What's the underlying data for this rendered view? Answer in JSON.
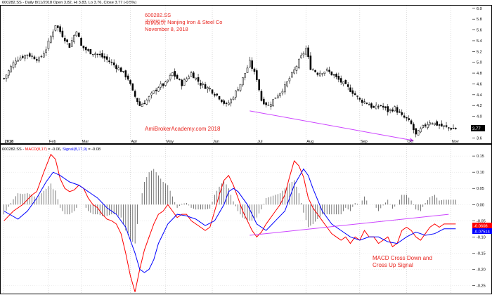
{
  "colors": {
    "up": "#ffffff",
    "down": "#000000",
    "macd": "#ff0000",
    "signal": "#0000ff",
    "histogram": "#404040",
    "trendline": "#cc44ff",
    "annotation": "#e8241e"
  },
  "header": {
    "price_info": "600282.SS - Daily 8/11/2018 Open 3.82, Hi 3.83, Lo 3.76, Close 3.77 (-0.5%)",
    "macd_info_prefix": "600282.SS - ",
    "macd_label": "MACD(8,17)",
    "macd_value": " = -0.06, ",
    "signal_label": "Signal(8,17,9)",
    "signal_value": " = -0.08"
  },
  "annotations": {
    "ticker": "600282.SS",
    "company": "南钢股份 Nanjing Iron & Steel Co",
    "date": "November 8, 2018",
    "watermark": "AmiBrokerAcademy.com 2018",
    "signal_note_line1": "MACD Cross Down and",
    "signal_note_line2": "Cross Up Signal"
  },
  "price_tag": "3.77",
  "macd_tag": "-0.0608",
  "signal_tag": "-0.07514",
  "chart_data": [
    {
      "type": "candlestick",
      "title": "600282.SS",
      "x_months": [
        "2018",
        "Feb",
        "Mar",
        "Apr",
        "May",
        "Jun",
        "Jul",
        "Aug",
        "Sep",
        "Oct",
        "Nov"
      ],
      "month_start_bar": [
        0,
        19,
        33,
        54,
        69,
        89,
        108,
        129,
        152,
        172,
        191
      ],
      "y_ticks": [
        3.6,
        3.8,
        4.0,
        4.2,
        4.4,
        4.6,
        4.8,
        5.0,
        5.2,
        5.4,
        5.6,
        5.8,
        6.0
      ],
      "ylim": [
        3.5,
        6.05
      ],
      "close_points": [
        [
          0,
          4.7
        ],
        [
          5,
          5.05
        ],
        [
          10,
          5.15
        ],
        [
          15,
          5.05
        ],
        [
          18,
          5.25
        ],
        [
          22,
          5.7
        ],
        [
          25,
          5.5
        ],
        [
          28,
          5.3
        ],
        [
          31,
          5.6
        ],
        [
          33,
          5.3
        ],
        [
          36,
          5.2
        ],
        [
          40,
          5.15
        ],
        [
          44,
          5.05
        ],
        [
          47,
          4.95
        ],
        [
          50,
          4.85
        ],
        [
          53,
          4.7
        ],
        [
          55,
          4.45
        ],
        [
          58,
          4.2
        ],
        [
          61,
          4.3
        ],
        [
          64,
          4.45
        ],
        [
          66,
          4.55
        ],
        [
          69,
          4.6
        ],
        [
          72,
          4.8
        ],
        [
          76,
          4.6
        ],
        [
          80,
          4.8
        ],
        [
          84,
          4.6
        ],
        [
          88,
          4.5
        ],
        [
          92,
          4.35
        ],
        [
          95,
          4.2
        ],
        [
          97,
          4.3
        ],
        [
          101,
          4.6
        ],
        [
          105,
          5.0
        ],
        [
          108,
          4.7
        ],
        [
          110,
          4.3
        ],
        [
          113,
          4.2
        ],
        [
          117,
          4.4
        ],
        [
          120,
          4.55
        ],
        [
          124,
          4.85
        ],
        [
          127,
          5.1
        ],
        [
          129,
          5.25
        ],
        [
          131,
          4.9
        ],
        [
          134,
          4.8
        ],
        [
          138,
          4.85
        ],
        [
          141,
          4.75
        ],
        [
          145,
          4.6
        ],
        [
          149,
          4.45
        ],
        [
          152,
          4.3
        ],
        [
          155,
          4.25
        ],
        [
          158,
          4.15
        ],
        [
          161,
          4.2
        ],
        [
          164,
          4.1
        ],
        [
          167,
          4.15
        ],
        [
          170,
          4.0
        ],
        [
          172,
          3.95
        ],
        [
          174,
          3.85
        ],
        [
          176,
          3.65
        ],
        [
          179,
          3.8
        ],
        [
          182,
          3.9
        ],
        [
          185,
          3.85
        ],
        [
          188,
          3.8
        ],
        [
          191,
          3.78
        ],
        [
          193,
          3.77
        ]
      ],
      "trendline": [
        [
          105,
          4.1
        ],
        [
          175,
          3.55
        ]
      ]
    },
    {
      "type": "line",
      "series_names": [
        "MACD(8,17)",
        "Signal(8,17,9)"
      ],
      "y_ticks": [
        -0.25,
        -0.2,
        -0.15,
        -0.1,
        -0.05,
        0.0,
        0.05,
        0.1,
        0.15
      ],
      "ylim": [
        -0.275,
        0.185
      ],
      "macd_points": [
        [
          0,
          -0.05
        ],
        [
          4,
          -0.02
        ],
        [
          8,
          0.0
        ],
        [
          12,
          0.03
        ],
        [
          14,
          0.04
        ],
        [
          17,
          0.1
        ],
        [
          20,
          0.155
        ],
        [
          22,
          0.14
        ],
        [
          24,
          0.08
        ],
        [
          26,
          0.05
        ],
        [
          28,
          0.04
        ],
        [
          30,
          0.045
        ],
        [
          32,
          0.06
        ],
        [
          34,
          0.05
        ],
        [
          36,
          0.02
        ],
        [
          38,
          0.0
        ],
        [
          40,
          -0.01
        ],
        [
          42,
          -0.03
        ],
        [
          44,
          -0.045
        ],
        [
          46,
          -0.05
        ],
        [
          48,
          -0.06
        ],
        [
          50,
          -0.09
        ],
        [
          52,
          -0.15
        ],
        [
          54,
          -0.22
        ],
        [
          56,
          -0.27
        ],
        [
          58,
          -0.2
        ],
        [
          60,
          -0.14
        ],
        [
          62,
          -0.1
        ],
        [
          64,
          -0.06
        ],
        [
          66,
          -0.03
        ],
        [
          68,
          -0.02
        ],
        [
          70,
          0.0
        ],
        [
          72,
          -0.02
        ],
        [
          74,
          -0.04
        ],
        [
          76,
          -0.03
        ],
        [
          78,
          -0.03
        ],
        [
          80,
          -0.05
        ],
        [
          82,
          -0.06
        ],
        [
          84,
          -0.07
        ],
        [
          86,
          -0.08
        ],
        [
          88,
          -0.07
        ],
        [
          90,
          -0.02
        ],
        [
          92,
          0.03
        ],
        [
          94,
          0.075
        ],
        [
          96,
          0.09
        ],
        [
          98,
          0.06
        ],
        [
          100,
          0.02
        ],
        [
          102,
          -0.02
        ],
        [
          104,
          -0.05
        ],
        [
          106,
          -0.08
        ],
        [
          108,
          -0.1
        ],
        [
          110,
          -0.085
        ],
        [
          112,
          -0.06
        ],
        [
          114,
          -0.04
        ],
        [
          116,
          -0.02
        ],
        [
          118,
          0.0
        ],
        [
          120,
          0.03
        ],
        [
          122,
          0.085
        ],
        [
          124,
          0.135
        ],
        [
          126,
          0.12
        ],
        [
          128,
          0.085
        ],
        [
          130,
          0.02
        ],
        [
          132,
          -0.01
        ],
        [
          134,
          -0.03
        ],
        [
          136,
          -0.05
        ],
        [
          138,
          -0.07
        ],
        [
          140,
          -0.09
        ],
        [
          142,
          -0.1
        ],
        [
          144,
          -0.11
        ],
        [
          146,
          -0.1
        ],
        [
          148,
          -0.12
        ],
        [
          150,
          -0.1
        ],
        [
          152,
          -0.11
        ],
        [
          154,
          -0.08
        ],
        [
          156,
          -0.1
        ],
        [
          158,
          -0.1
        ],
        [
          160,
          -0.12
        ],
        [
          162,
          -0.11
        ],
        [
          164,
          -0.1
        ],
        [
          166,
          -0.13
        ],
        [
          168,
          -0.12
        ],
        [
          170,
          -0.08
        ],
        [
          172,
          -0.07
        ],
        [
          174,
          -0.08
        ],
        [
          176,
          -0.1
        ],
        [
          178,
          -0.11
        ],
        [
          180,
          -0.09
        ],
        [
          182,
          -0.07
        ],
        [
          184,
          -0.06
        ],
        [
          186,
          -0.07
        ],
        [
          188,
          -0.06
        ],
        [
          190,
          -0.06
        ],
        [
          193,
          -0.06
        ]
      ],
      "signal_points": [
        [
          0,
          -0.02
        ],
        [
          6,
          -0.045
        ],
        [
          10,
          -0.02
        ],
        [
          14,
          0.02
        ],
        [
          18,
          0.07
        ],
        [
          21,
          0.1
        ],
        [
          24,
          0.09
        ],
        [
          28,
          0.07
        ],
        [
          32,
          0.06
        ],
        [
          36,
          0.04
        ],
        [
          40,
          0.02
        ],
        [
          44,
          -0.01
        ],
        [
          48,
          -0.03
        ],
        [
          52,
          -0.07
        ],
        [
          56,
          -0.15
        ],
        [
          58,
          -0.2
        ],
        [
          60,
          -0.21
        ],
        [
          62,
          -0.2
        ],
        [
          64,
          -0.17
        ],
        [
          66,
          -0.12
        ],
        [
          70,
          -0.06
        ],
        [
          74,
          -0.03
        ],
        [
          78,
          -0.035
        ],
        [
          82,
          -0.045
        ],
        [
          86,
          -0.065
        ],
        [
          90,
          -0.05
        ],
        [
          94,
          0.0
        ],
        [
          96,
          0.04
        ],
        [
          98,
          0.05
        ],
        [
          100,
          0.04
        ],
        [
          104,
          0.0
        ],
        [
          108,
          -0.06
        ],
        [
          112,
          -0.08
        ],
        [
          116,
          -0.05
        ],
        [
          120,
          -0.02
        ],
        [
          124,
          0.06
        ],
        [
          128,
          0.11
        ],
        [
          130,
          0.09
        ],
        [
          132,
          0.05
        ],
        [
          136,
          -0.02
        ],
        [
          140,
          -0.06
        ],
        [
          144,
          -0.08
        ],
        [
          148,
          -0.1
        ],
        [
          152,
          -0.11
        ],
        [
          156,
          -0.1
        ],
        [
          160,
          -0.1
        ],
        [
          164,
          -0.115
        ],
        [
          168,
          -0.12
        ],
        [
          172,
          -0.1
        ],
        [
          176,
          -0.085
        ],
        [
          180,
          -0.095
        ],
        [
          184,
          -0.09
        ],
        [
          188,
          -0.075
        ],
        [
          193,
          -0.075
        ]
      ],
      "trendline": [
        [
          105,
          -0.095
        ],
        [
          190,
          -0.03
        ]
      ]
    }
  ]
}
